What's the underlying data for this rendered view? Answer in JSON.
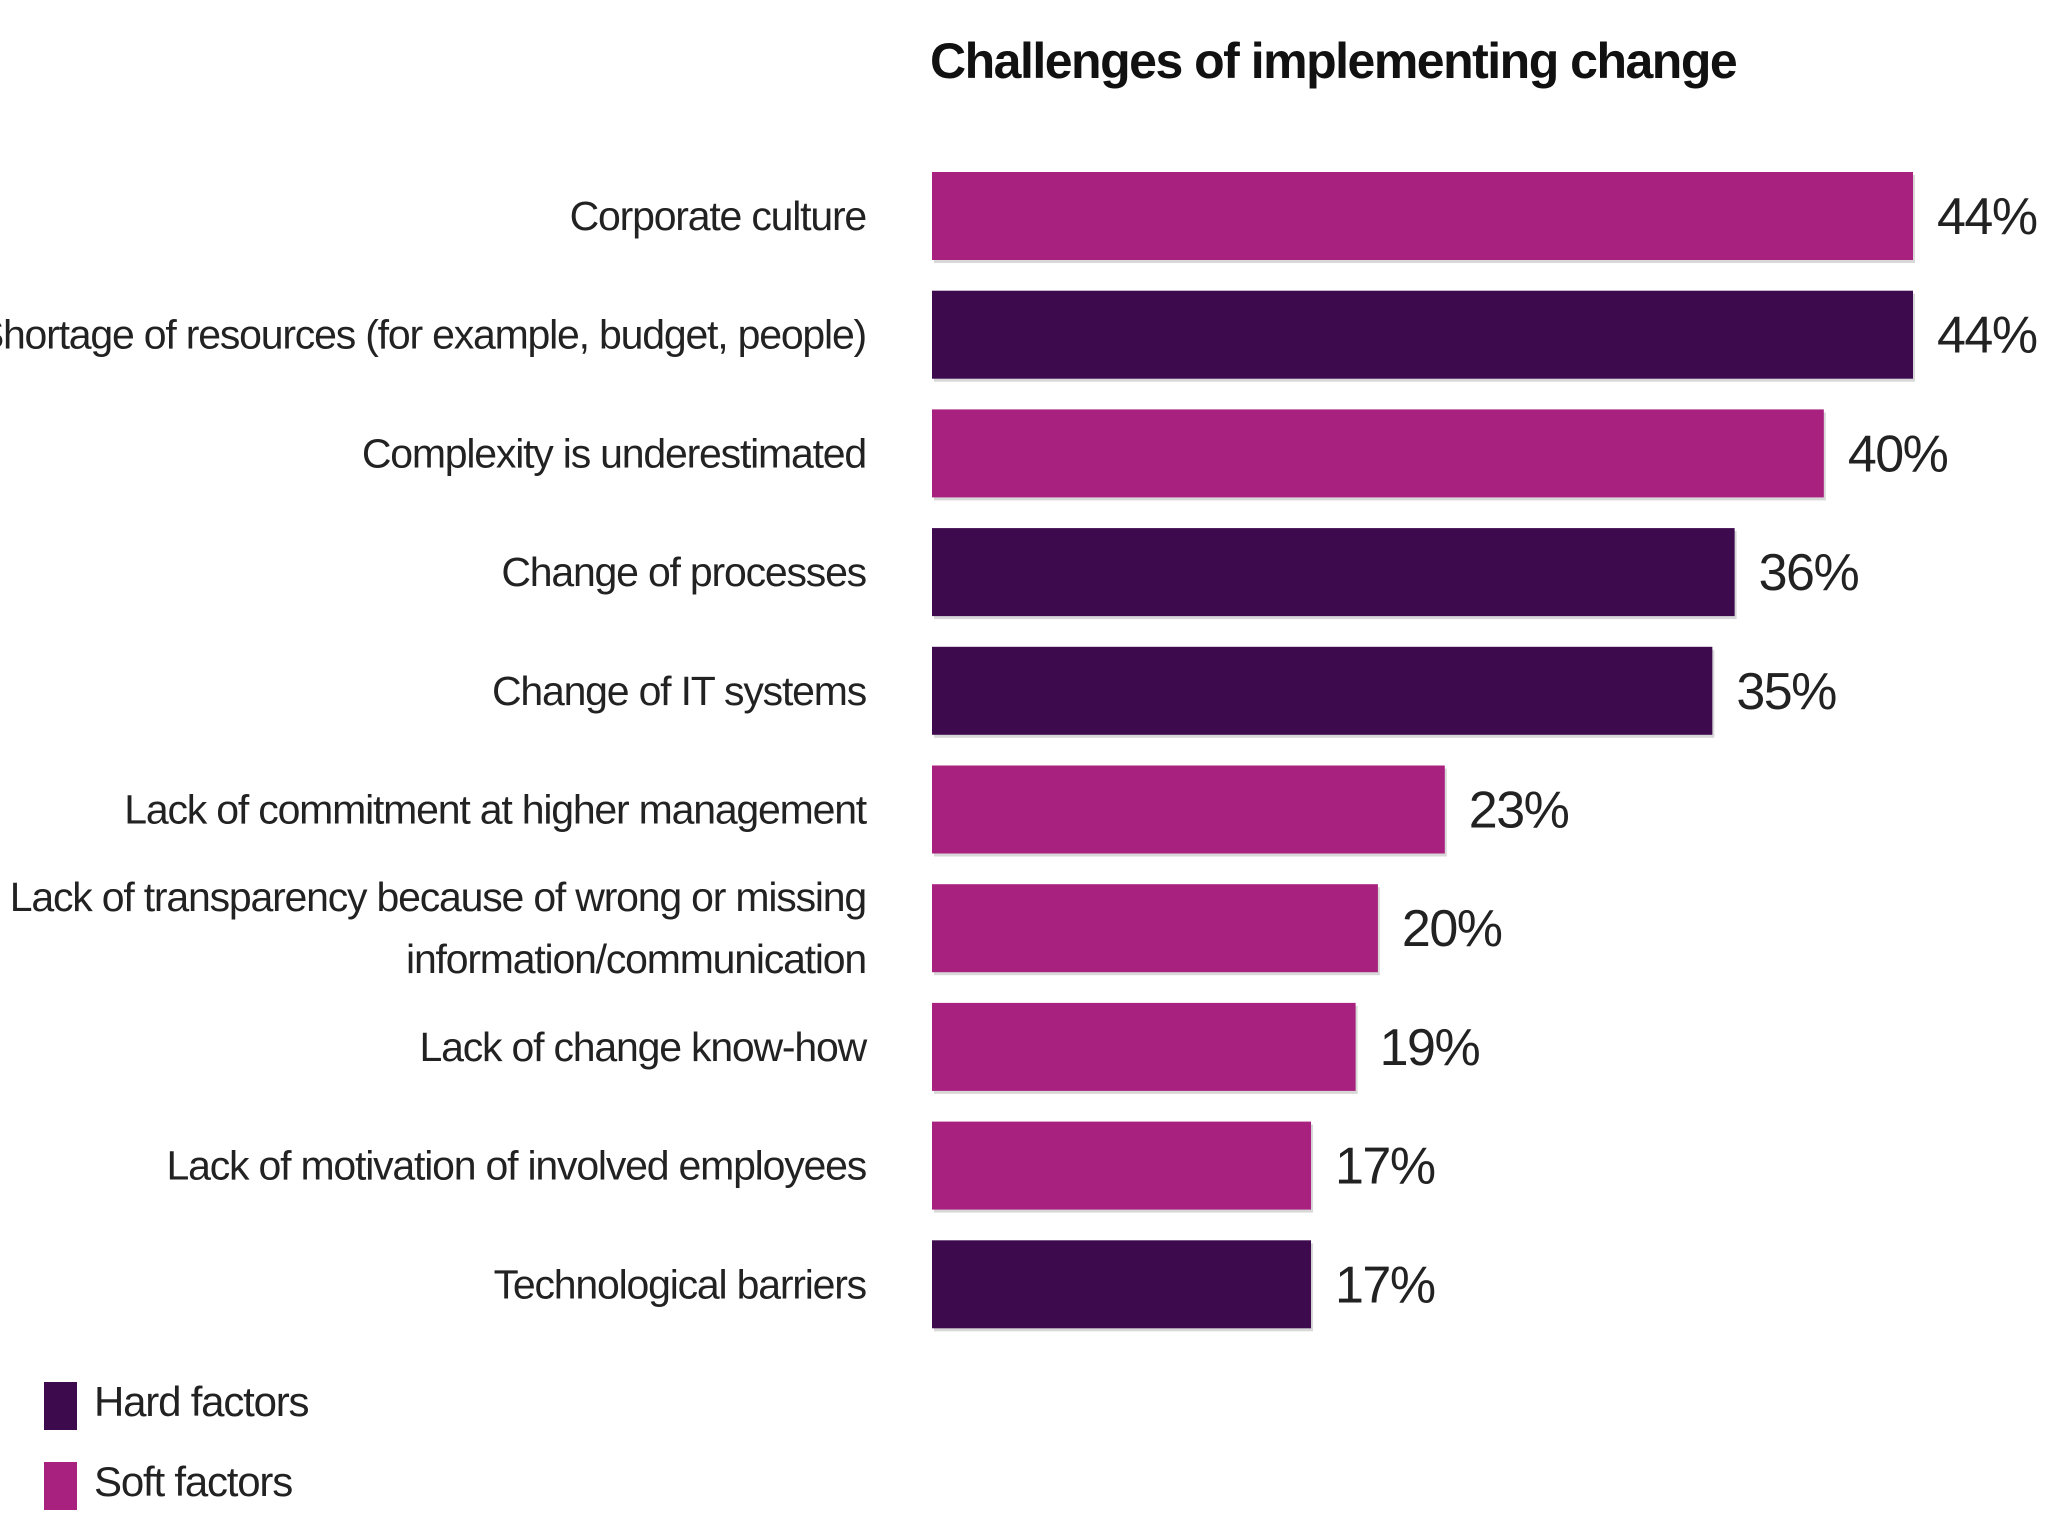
{
  "chart_data": {
    "type": "bar",
    "orientation": "horizontal",
    "title": "Challenges of implementing change",
    "categories": [
      "Corporate culture",
      "Shortage of resources (for example, budget, people)",
      "Complexity is underestimated",
      "Change of processes",
      "Change of IT systems",
      "Lack of commitment at higher management",
      "Lack of transparency because of wrong or missing information/communication",
      "Lack of change know-how",
      "Lack of motivation of involved employees",
      "Technological barriers"
    ],
    "category_lines": [
      [
        "Corporate culture"
      ],
      [
        "Shortage of resources (for example, budget, people)"
      ],
      [
        "Complexity is underestimated"
      ],
      [
        "Change of processes"
      ],
      [
        "Change of IT systems"
      ],
      [
        "Lack of commitment at higher management"
      ],
      [
        "Lack of transparency because of wrong or missing",
        "information/communication"
      ],
      [
        "Lack of change know-how"
      ],
      [
        "Lack of motivation of involved employees"
      ],
      [
        "Technological barriers"
      ]
    ],
    "values": [
      44,
      44,
      40,
      36,
      35,
      23,
      20,
      19,
      17,
      17
    ],
    "value_labels": [
      "44%",
      "44%",
      "40%",
      "36%",
      "35%",
      "23%",
      "20%",
      "19%",
      "17%",
      "17%"
    ],
    "factor": [
      "soft",
      "hard",
      "soft",
      "hard",
      "hard",
      "soft",
      "soft",
      "soft",
      "soft",
      "hard"
    ],
    "xlim": [
      0,
      44
    ],
    "grid": false,
    "legend": {
      "placement": "bottom-left",
      "items": [
        {
          "key": "hard",
          "label": "Hard factors",
          "color": "#3d0a4e"
        },
        {
          "key": "soft",
          "label": "Soft factors",
          "color": "#a8217e"
        }
      ]
    },
    "colors": {
      "hard": "#3d0a4e",
      "soft": "#a8217e"
    }
  }
}
